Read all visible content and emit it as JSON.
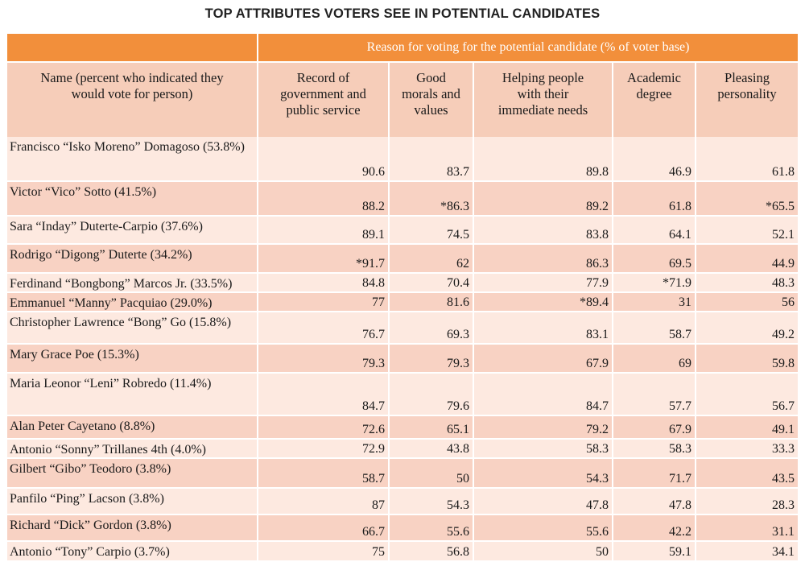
{
  "chart_data": {
    "type": "table",
    "title": "TOP ATTRIBUTES VOTERS SEE IN POTENTIAL CANDIDATES",
    "group_header": "Reason for voting for the potential candidate (% of voter base)",
    "name_header": "Name (percent who indicated they would vote for person)",
    "columns": [
      "Record of government and public service",
      "Good morals and values",
      "Helping people with their immediate needs",
      "Academic degree",
      "Pleasing personality"
    ],
    "rows": [
      {
        "name": "Francisco “Isko Moreno” Domagoso (53.8%)",
        "values": [
          "90.6",
          "83.7",
          "89.8",
          "46.9",
          "61.8"
        ]
      },
      {
        "name": "Victor “Vico” Sotto (41.5%)",
        "values": [
          "88.2",
          "*86.3",
          "89.2",
          "61.8",
          "*65.5"
        ]
      },
      {
        "name": "Sara “Inday” Duterte-Carpio (37.6%)",
        "values": [
          "89.1",
          "74.5",
          "83.8",
          "64.1",
          "52.1"
        ]
      },
      {
        "name": "Rodrigo “Digong” Duterte (34.2%)",
        "values": [
          "*91.7",
          "62",
          "86.3",
          "69.5",
          "44.9"
        ]
      },
      {
        "name": "Ferdinand “Bongbong” Marcos Jr. (33.5%)",
        "values": [
          "84.8",
          "70.4",
          "77.9",
          "*71.9",
          "48.3"
        ]
      },
      {
        "name": "Emmanuel “Manny” Pacquiao (29.0%)",
        "values": [
          "77",
          "81.6",
          "*89.4",
          "31",
          "56"
        ]
      },
      {
        "name": "Christopher Lawrence “Bong” Go (15.8%)",
        "values": [
          "76.7",
          "69.3",
          "83.1",
          "58.7",
          "49.2"
        ]
      },
      {
        "name": "Mary Grace Poe (15.3%)",
        "values": [
          "79.3",
          "79.3",
          "67.9",
          "69",
          "59.8"
        ]
      },
      {
        "name": "Maria Leonor “Leni” Robredo (11.4%)",
        "values": [
          "84.7",
          "79.6",
          "84.7",
          "57.7",
          "56.7"
        ]
      },
      {
        "name": "Alan Peter Cayetano (8.8%)",
        "values": [
          "72.6",
          "65.1",
          "79.2",
          "67.9",
          "49.1"
        ]
      },
      {
        "name": "Antonio “Sonny” Trillanes 4th (4.0%)",
        "values": [
          "72.9",
          "43.8",
          "58.3",
          "58.3",
          "33.3"
        ]
      },
      {
        "name": "Gilbert “Gibo” Teodoro (3.8%)",
        "values": [
          "58.7",
          "50",
          "54.3",
          "71.7",
          "43.5"
        ]
      },
      {
        "name": "Panfilo “Ping” Lacson (3.8%)",
        "values": [
          "87",
          "54.3",
          "47.8",
          "47.8",
          "28.3"
        ]
      },
      {
        "name": "Richard “Dick” Gordon (3.8%)",
        "values": [
          "66.7",
          "55.6",
          "55.6",
          "42.2",
          "31.1"
        ]
      },
      {
        "name": "Antonio “Tony” Carpio (3.7%)",
        "values": [
          "75",
          "56.8",
          "50",
          "59.1",
          "34.1"
        ]
      }
    ]
  },
  "colors": {
    "header_orange": "#f28f3b",
    "header_peach": "#f6cdb9",
    "row_light": "#fde9e0",
    "row_dark": "#f8d2c3"
  }
}
